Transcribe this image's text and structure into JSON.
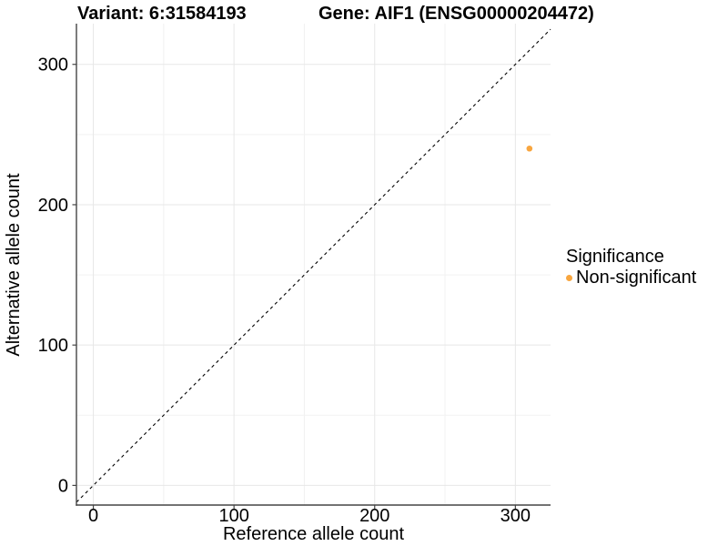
{
  "chart_data": {
    "type": "scatter",
    "titles": {
      "variant": "Variant: 6:31584193",
      "gene": "Gene: AIF1 (ENSG00000204472)"
    },
    "xlabel": "Reference allele count",
    "ylabel": "Alternative allele count",
    "xlim": [
      -12,
      325
    ],
    "ylim": [
      -14,
      329
    ],
    "x_ticks": [
      0,
      100,
      200,
      300
    ],
    "y_ticks": [
      0,
      100,
      200,
      300
    ],
    "minor_gridlines": [
      50,
      150,
      250
    ],
    "grid": true,
    "reference_line": {
      "type": "identity",
      "style": "dashed",
      "color": "#000000"
    },
    "series": [
      {
        "name": "Non-significant",
        "color": "#F8A63F",
        "points": [
          {
            "x": 310,
            "y": 240
          }
        ]
      }
    ],
    "legend": {
      "title": "Significance",
      "position": "right",
      "items": [
        {
          "label": "Non-significant",
          "color": "#F8A63F"
        }
      ]
    },
    "colors": {
      "background": "#ffffff",
      "grid_major": "#e7e7e7",
      "grid_minor": "#f2f2f2",
      "axis_line": "#454545",
      "tick_text": "#000000"
    }
  }
}
